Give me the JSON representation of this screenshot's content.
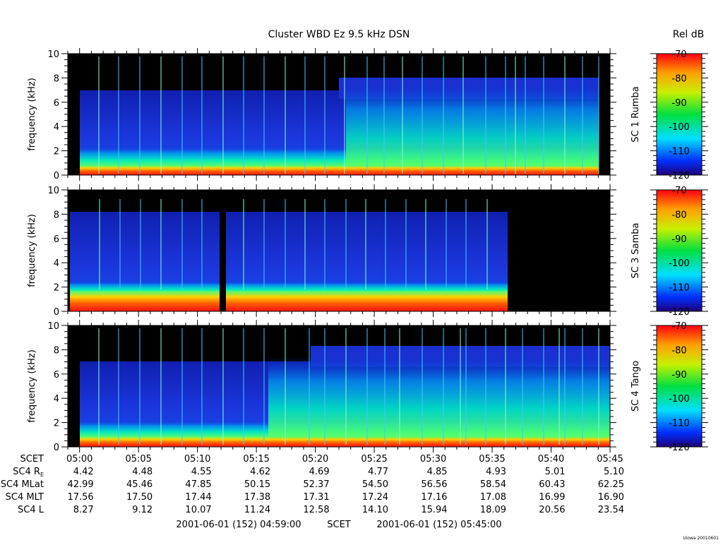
{
  "title": "Cluster WBD Ez 9.5 kHz DSN",
  "colorbar_title": "Rel dB",
  "panel_ylabel": "frequency (kHz)",
  "panels": [
    {
      "name": "SC 1 Rumba"
    },
    {
      "name": "SC 3 Samba"
    },
    {
      "name": "SC 4 Tango"
    }
  ],
  "time_ticks": [
    "05:00",
    "05:05",
    "05:10",
    "05:15",
    "05:20",
    "05:25",
    "05:30",
    "05:35",
    "05:40",
    "05:45"
  ],
  "ephemeris": {
    "scet_label": "SCET",
    "rows": [
      {
        "label": "SC4 R",
        "sub": "E",
        "values": [
          "4.42",
          "4.48",
          "4.55",
          "4.62",
          "4.69",
          "4.77",
          "4.85",
          "4.93",
          "5.01",
          "5.10"
        ]
      },
      {
        "label": "SC4 MLat",
        "sub": "",
        "values": [
          "42.99",
          "45.46",
          "47.85",
          "50.15",
          "52.37",
          "54.50",
          "56.56",
          "58.54",
          "60.43",
          "62.25"
        ]
      },
      {
        "label": "SC4 MLT",
        "sub": "",
        "values": [
          "17.56",
          "17.50",
          "17.44",
          "17.38",
          "17.31",
          "17.24",
          "17.16",
          "17.08",
          "16.99",
          "16.90"
        ]
      },
      {
        "label": "SC4 L",
        "sub": "",
        "values": [
          "8.27",
          "9.12",
          "10.07",
          "11.24",
          "12.58",
          "14.10",
          "15.94",
          "18.09",
          "20.56",
          "23.54"
        ]
      }
    ]
  },
  "footer": {
    "start": "2001-06-01 (152) 04:59:00",
    "mid": "SCET",
    "end": "2001-06-01 (152) 05:45:00"
  },
  "credit": "Uiowa 20010601",
  "colors": {
    "background_black": "#000000",
    "spectrogram_blue": "#1a2fd8"
  },
  "chart_data": {
    "type": "heatmap",
    "title": "Cluster WBD Ez 9.5 kHz DSN",
    "ylabel": "frequency (kHz)",
    "xlabel": "SCET",
    "colorbar_label": "Rel dB",
    "x_range": [
      "04:59:00",
      "05:45:00"
    ],
    "xticks": [
      "05:00",
      "05:05",
      "05:10",
      "05:15",
      "05:20",
      "05:25",
      "05:30",
      "05:35",
      "05:40",
      "05:45"
    ],
    "ylim": [
      0,
      10
    ],
    "yticks": [
      0,
      2,
      4,
      6,
      8,
      10
    ],
    "color_range_db": [
      -120,
      -70
    ],
    "color_ticks": [
      -70,
      -80,
      -90,
      -100,
      -110,
      -120
    ],
    "panels": [
      "SC 1 Rumba",
      "SC 3 Samba",
      "SC 4 Tango"
    ]
  }
}
